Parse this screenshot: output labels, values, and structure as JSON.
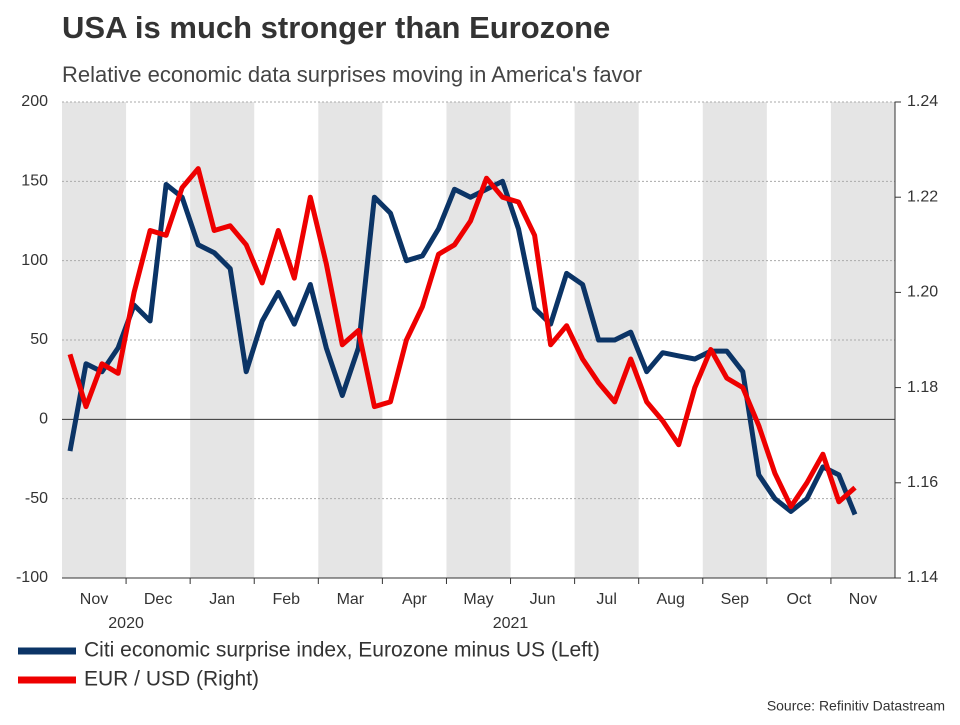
{
  "chart_data": {
    "type": "line",
    "title": "USA is much stronger than Eurozone",
    "subtitle": "Relative economic data surprises moving in America's favor",
    "source": "Source: Refinitiv Datastream",
    "categories": [
      null,
      "Nov",
      null,
      null,
      null,
      "Dec",
      null,
      null,
      null,
      "Jan",
      null,
      null,
      null,
      "Feb",
      null,
      null,
      null,
      "Mar",
      null,
      null,
      null,
      "Apr",
      null,
      null,
      null,
      "May",
      null,
      null,
      null,
      "Jun",
      null,
      null,
      null,
      "Jul",
      null,
      null,
      null,
      "Aug",
      null,
      null,
      null,
      "Sep",
      null,
      null,
      null,
      "Oct",
      null,
      null,
      null,
      "Nov",
      null,
      null
    ],
    "year_labels": [
      "2020",
      "2021"
    ],
    "ylim": [
      -100,
      200
    ],
    "yticks": [
      -100,
      -50,
      0,
      50,
      100,
      150,
      200
    ],
    "y2lim": [
      1.14,
      1.24
    ],
    "y2ticks": [
      1.14,
      1.16,
      1.18,
      {
        "value": 1.2,
        "label": "1.20"
      },
      1.22,
      1.24
    ],
    "grid": true,
    "legend": "bottom-left",
    "series": [
      {
        "name": "Citi economic surprise index, Eurozone minus US (Left)",
        "color": "#0b3466",
        "values": [
          -20,
          35,
          30,
          45,
          72,
          62,
          148,
          140,
          110,
          105,
          95,
          30,
          62,
          80,
          60,
          85,
          45,
          15,
          45,
          140,
          130,
          100,
          103,
          120,
          145,
          140,
          145,
          150,
          120,
          70,
          60,
          92,
          85,
          50,
          50,
          55,
          30,
          42,
          40,
          38,
          43,
          43,
          30,
          -35,
          -50,
          -58,
          -50,
          -30,
          -35,
          -60,
          null,
          null
        ]
      },
      {
        "name": "EUR / USD (Right)",
        "color": "#ee0000",
        "axis": "y2",
        "values": [
          1.187,
          1.176,
          1.185,
          1.183,
          1.2,
          1.213,
          1.212,
          1.222,
          1.226,
          1.213,
          1.214,
          1.21,
          1.202,
          1.213,
          1.203,
          1.22,
          1.206,
          1.189,
          1.192,
          1.176,
          1.177,
          1.19,
          1.197,
          1.208,
          1.21,
          1.215,
          1.224,
          1.22,
          1.219,
          1.212,
          1.189,
          1.193,
          1.186,
          1.181,
          1.177,
          1.186,
          1.177,
          1.173,
          1.168,
          1.18,
          1.188,
          1.182,
          1.18,
          1.172,
          1.162,
          1.155,
          1.16,
          1.166,
          1.156,
          1.159,
          null,
          null
        ]
      }
    ]
  }
}
